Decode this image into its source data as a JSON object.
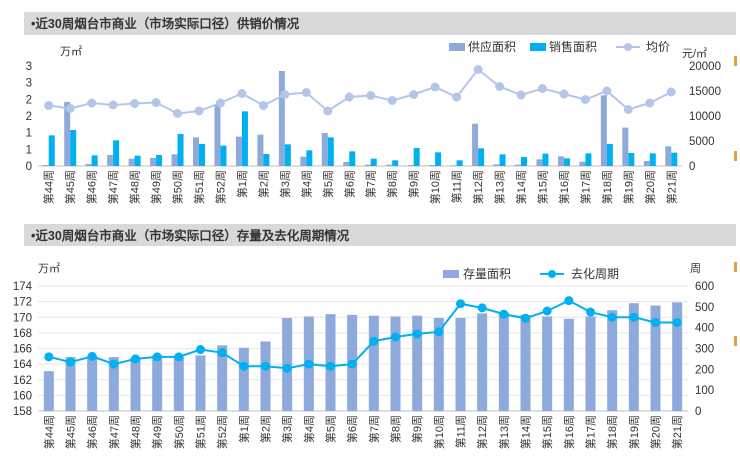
{
  "chart_data": [
    {
      "type": "bar",
      "title": "•近30周烟台市商业（市场实际口径）供销价情况",
      "ylabel_left": "万㎡",
      "ylabel_right": "元/㎡",
      "ylim_left": [
        0,
        3
      ],
      "yticks_left": [
        "0",
        "1",
        "1",
        "2",
        "2",
        "3",
        "3"
      ],
      "ylim_right": [
        0,
        20000
      ],
      "yticks_right": [
        "0",
        "5000",
        "10000",
        "15000",
        "20000"
      ],
      "categories": [
        "第44周",
        "第45周",
        "第46周",
        "第47周",
        "第48周",
        "第49周",
        "第50周",
        "第51周",
        "第52周",
        "第1周",
        "第2周",
        "第3周",
        "第4周",
        "第5周",
        "第6周",
        "第7周",
        "第8周",
        "第9周",
        "第10周",
        "第11周",
        "第12周",
        "第13周",
        "第14周",
        "第15周",
        "第16周",
        "第17周",
        "第18周",
        "第19周",
        "第20周",
        "第21周"
      ],
      "series": [
        {
          "name": "供应面积",
          "kind": "bar",
          "axis": "left",
          "color": "#8eaadb",
          "values": [
            0.03,
            1.92,
            0.06,
            0.33,
            0.22,
            0.24,
            0.35,
            0.86,
            1.85,
            0.88,
            0.94,
            2.85,
            0.28,
            0.99,
            0.12,
            0.04,
            0.04,
            0.03,
            0.03,
            0.02,
            1.27,
            0.05,
            0.04,
            0.2,
            0.29,
            0.13,
            2.12,
            1.15,
            0.15,
            0.59
          ]
        },
        {
          "name": "销售面积",
          "kind": "bar",
          "axis": "left",
          "color": "#00b0f0",
          "values": [
            0.92,
            1.08,
            0.32,
            0.77,
            0.31,
            0.33,
            0.96,
            0.66,
            0.61,
            1.64,
            0.36,
            0.65,
            0.47,
            0.86,
            0.44,
            0.22,
            0.17,
            0.54,
            0.41,
            0.17,
            0.53,
            0.35,
            0.27,
            0.37,
            0.23,
            0.38,
            0.66,
            0.39,
            0.38,
            0.4
          ]
        },
        {
          "name": "均价",
          "kind": "line",
          "axis": "right",
          "color": "#b4c6e7",
          "values": [
            12100,
            11500,
            12600,
            12200,
            12500,
            12700,
            10500,
            11000,
            12600,
            14500,
            12100,
            14300,
            14700,
            11000,
            13800,
            14100,
            13100,
            14300,
            15800,
            13800,
            19300,
            15900,
            14200,
            15500,
            14400,
            13300,
            15000,
            11300,
            12600,
            14800
          ]
        }
      ]
    },
    {
      "type": "bar",
      "title": "•近30周烟台市商业（市场实际口径）存量及去化周期情况",
      "ylabel_left": "万㎡",
      "ylabel_right": "周",
      "ylim_left": [
        158,
        174
      ],
      "yticks_left": [
        "158",
        "160",
        "162",
        "164",
        "166",
        "168",
        "170",
        "172",
        "174"
      ],
      "ylim_right": [
        0,
        600
      ],
      "yticks_right": [
        "0",
        "100",
        "200",
        "300",
        "400",
        "500",
        "600"
      ],
      "categories": [
        "第44周",
        "第45周",
        "第46周",
        "第47周",
        "第48周",
        "第49周",
        "第50周",
        "第51周",
        "第52周",
        "第1周",
        "第2周",
        "第3周",
        "第4周",
        "第5周",
        "第6周",
        "第7周",
        "第8周",
        "第9周",
        "第10周",
        "第11周",
        "第12周",
        "第13周",
        "第14周",
        "第15周",
        "第16周",
        "第17周",
        "第18周",
        "第19周",
        "第20周",
        "第21周"
      ],
      "series": [
        {
          "name": "存量面积",
          "kind": "bar",
          "axis": "left",
          "color": "#8eaadb",
          "values": [
            163.1,
            164.9,
            165.1,
            164.9,
            164.9,
            165.1,
            164.9,
            165.1,
            166.4,
            166.1,
            166.9,
            169.9,
            170.1,
            170.4,
            170.3,
            170.2,
            170.1,
            170.2,
            169.9,
            169.9,
            170.5,
            170.6,
            170.3,
            170.1,
            169.8,
            170.1,
            170.9,
            171.8,
            171.5,
            171.9
          ]
        },
        {
          "name": "去化周期",
          "kind": "line",
          "axis": "right",
          "color": "#00b0f0",
          "values": [
            260,
            235,
            262,
            225,
            250,
            260,
            260,
            295,
            280,
            215,
            215,
            205,
            225,
            215,
            225,
            335,
            355,
            370,
            380,
            515,
            495,
            465,
            445,
            480,
            530,
            475,
            450,
            450,
            425,
            425
          ]
        }
      ]
    }
  ]
}
